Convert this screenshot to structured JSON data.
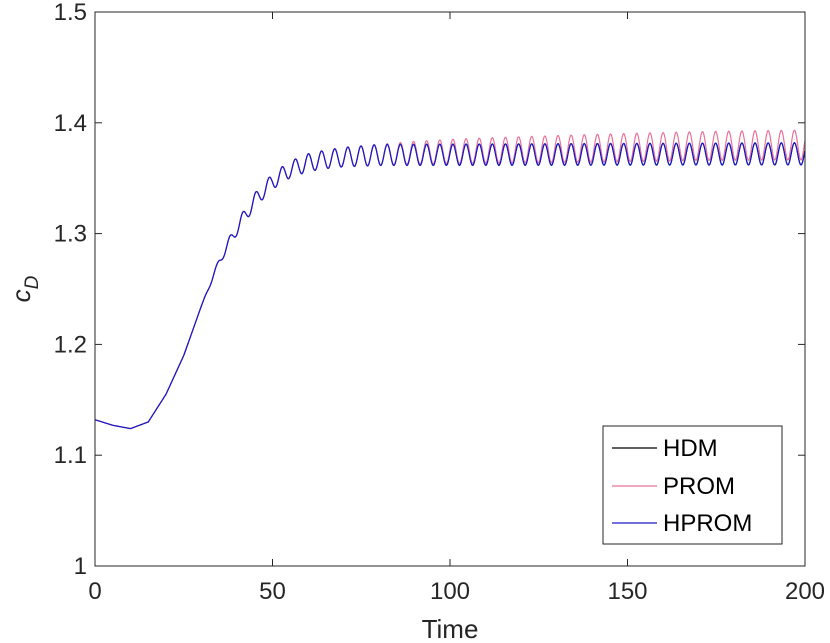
{
  "chart_data": {
    "type": "line",
    "xlabel": "Time",
    "ylabel_main": "c",
    "ylabel_sub": "D",
    "xlim": [
      0,
      200
    ],
    "ylim": [
      1,
      1.5
    ],
    "xticks": [
      0,
      50,
      100,
      150,
      200
    ],
    "xtick_labels": [
      "0",
      "50",
      "100",
      "150",
      "200"
    ],
    "yticks": [
      1,
      1.1,
      1.2,
      1.3,
      1.4,
      1.5
    ],
    "ytick_labels": [
      "1",
      "1.1",
      "1.2",
      "1.3",
      "1.4",
      "1.5"
    ],
    "grid": false,
    "legend_position": "bottom-right",
    "series": [
      {
        "name": "HDM",
        "color": "#000000",
        "base": [
          [
            0,
            1.132
          ],
          [
            5,
            1.127
          ],
          [
            10,
            1.124
          ],
          [
            15,
            1.13
          ],
          [
            20,
            1.155
          ],
          [
            25,
            1.19
          ],
          [
            30,
            1.235
          ],
          [
            35,
            1.275
          ],
          [
            40,
            1.305
          ],
          [
            45,
            1.33
          ],
          [
            50,
            1.347
          ],
          [
            55,
            1.358
          ],
          [
            60,
            1.364
          ],
          [
            65,
            1.367
          ],
          [
            70,
            1.369
          ],
          [
            80,
            1.371
          ],
          [
            200,
            1.372
          ]
        ],
        "amplitude": [
          [
            0,
            0
          ],
          [
            30,
            0
          ],
          [
            40,
            0.006
          ],
          [
            50,
            0.007
          ],
          [
            60,
            0.008
          ],
          [
            80,
            0.0095
          ],
          [
            200,
            0.01
          ]
        ],
        "period": 3.7
      },
      {
        "name": "PROM",
        "color": "#e8719a",
        "base": [
          [
            0,
            1.132
          ],
          [
            5,
            1.127
          ],
          [
            10,
            1.124
          ],
          [
            15,
            1.13
          ],
          [
            20,
            1.155
          ],
          [
            25,
            1.19
          ],
          [
            30,
            1.235
          ],
          [
            35,
            1.275
          ],
          [
            40,
            1.305
          ],
          [
            45,
            1.33
          ],
          [
            50,
            1.347
          ],
          [
            55,
            1.358
          ],
          [
            60,
            1.364
          ],
          [
            65,
            1.367
          ],
          [
            70,
            1.369
          ],
          [
            80,
            1.371
          ],
          [
            90,
            1.373
          ],
          [
            110,
            1.375
          ],
          [
            140,
            1.377
          ],
          [
            170,
            1.379
          ],
          [
            200,
            1.38
          ]
        ],
        "amplitude": [
          [
            0,
            0
          ],
          [
            30,
            0
          ],
          [
            40,
            0.006
          ],
          [
            50,
            0.007
          ],
          [
            60,
            0.008
          ],
          [
            80,
            0.0095
          ],
          [
            100,
            0.011
          ],
          [
            140,
            0.0125
          ],
          [
            200,
            0.0135
          ]
        ],
        "period": 3.7
      },
      {
        "name": "HPROM",
        "color": "#1a1acc",
        "base": [
          [
            0,
            1.132
          ],
          [
            5,
            1.127
          ],
          [
            10,
            1.124
          ],
          [
            15,
            1.13
          ],
          [
            20,
            1.155
          ],
          [
            25,
            1.19
          ],
          [
            30,
            1.235
          ],
          [
            35,
            1.275
          ],
          [
            40,
            1.305
          ],
          [
            45,
            1.33
          ],
          [
            50,
            1.347
          ],
          [
            55,
            1.358
          ],
          [
            60,
            1.364
          ],
          [
            65,
            1.367
          ],
          [
            70,
            1.369
          ],
          [
            80,
            1.371
          ],
          [
            200,
            1.372
          ]
        ],
        "amplitude": [
          [
            0,
            0
          ],
          [
            30,
            0
          ],
          [
            40,
            0.006
          ],
          [
            50,
            0.007
          ],
          [
            60,
            0.008
          ],
          [
            80,
            0.0095
          ],
          [
            200,
            0.01
          ]
        ],
        "period": 3.7
      }
    ]
  }
}
